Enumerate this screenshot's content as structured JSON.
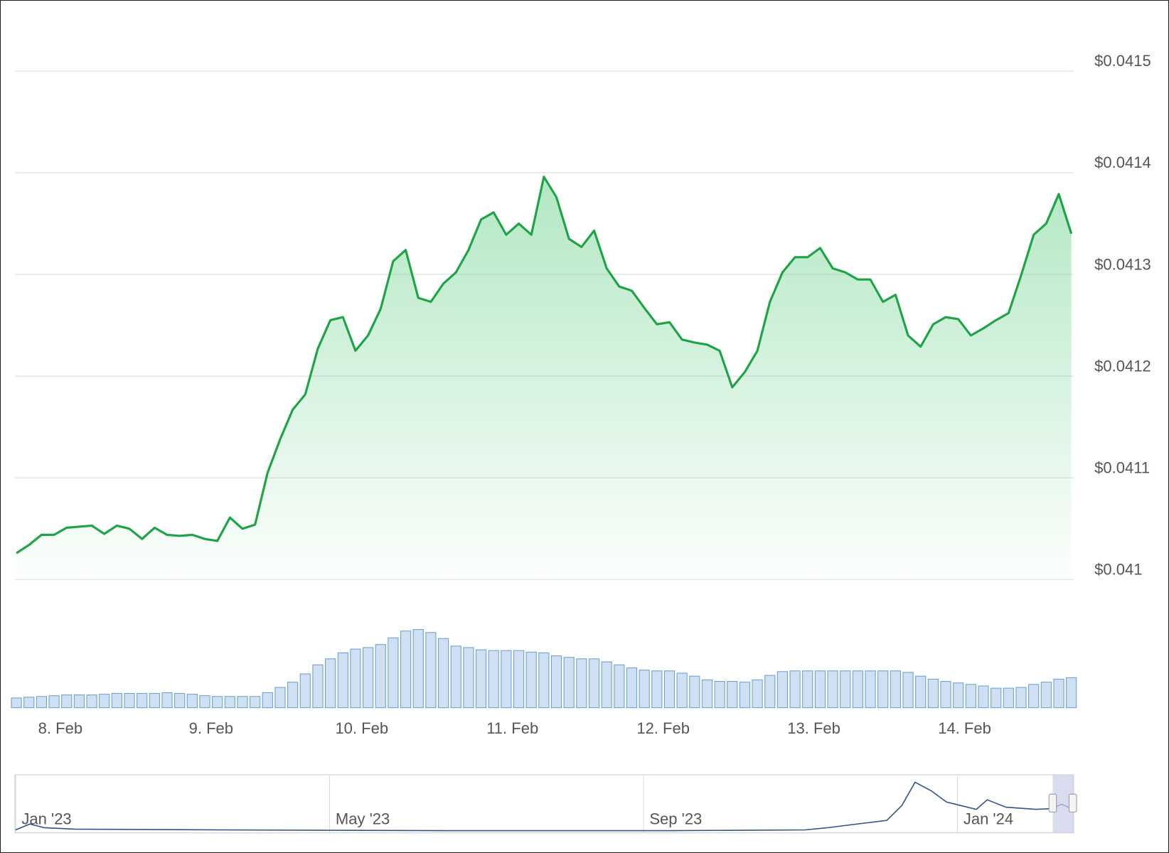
{
  "chart_data": {
    "type": "line",
    "x": [
      -7,
      -5,
      -3,
      -1,
      1,
      3,
      5,
      7,
      9,
      11,
      13,
      15,
      17,
      19,
      21,
      23,
      25,
      27,
      29,
      31,
      33,
      35,
      37,
      39,
      41,
      43,
      45,
      47,
      49,
      51,
      53,
      55,
      57,
      59,
      61,
      63,
      65,
      67,
      69,
      71,
      73,
      75,
      77,
      79,
      81,
      83,
      85,
      87,
      89,
      91,
      93,
      95,
      97,
      99,
      101,
      103,
      105,
      107,
      109,
      111,
      113,
      115,
      117,
      119,
      121,
      123,
      125,
      127,
      129,
      131,
      133,
      135,
      137,
      139,
      141,
      143,
      145,
      147,
      149,
      151,
      153,
      155,
      157,
      159,
      161
    ],
    "series": [
      {
        "color": "#1ea446",
        "values": [
          0.041026,
          0.041034,
          0.041044,
          0.041044,
          0.041051,
          0.041052,
          0.041053,
          0.041045,
          0.041053,
          0.04105,
          0.04104,
          0.041051,
          0.041044,
          0.041043,
          0.041044,
          0.04104,
          0.041038,
          0.041061,
          0.04105,
          0.041054,
          0.041105,
          0.041138,
          0.041167,
          0.041182,
          0.041227,
          0.041255,
          0.041258,
          0.041225,
          0.04124,
          0.041266,
          0.041313,
          0.041324,
          0.041277,
          0.041273,
          0.041291,
          0.041302,
          0.041324,
          0.041354,
          0.041361,
          0.041339,
          0.04135,
          0.041339,
          0.041396,
          0.041376,
          0.041335,
          0.041327,
          0.041343,
          0.041306,
          0.041288,
          0.041284,
          0.041267,
          0.041251,
          0.041253,
          0.041236,
          0.041233,
          0.041231,
          0.041225,
          0.041189,
          0.041204,
          0.041225,
          0.041273,
          0.041302,
          0.041317,
          0.041317,
          0.041326,
          0.041306,
          0.041302,
          0.041295,
          0.041295,
          0.041273,
          0.04128,
          0.04124,
          0.041229,
          0.041251,
          0.041258,
          0.041256,
          0.04124,
          0.041247,
          0.041255,
          0.041262,
          0.041299,
          0.041339,
          0.04135,
          0.041379,
          0.04134
        ]
      }
    ],
    "xlim": [
      -7,
      161
    ],
    "xticks": [
      {
        "value": 0,
        "label": "8. Feb"
      },
      {
        "value": 24,
        "label": "9. Feb"
      },
      {
        "value": 48,
        "label": "10. Feb"
      },
      {
        "value": 72,
        "label": "11. Feb"
      },
      {
        "value": 96,
        "label": "12. Feb"
      },
      {
        "value": 120,
        "label": "13. Feb"
      },
      {
        "value": 144,
        "label": "14. Feb"
      }
    ],
    "ylim": [
      0.041,
      0.04155
    ],
    "yticks": [
      {
        "value": 0.041,
        "label": "$0.041"
      },
      {
        "value": 0.0411,
        "label": "$0.0411"
      },
      {
        "value": 0.0412,
        "label": "$0.0412"
      },
      {
        "value": 0.0413,
        "label": "$0.0413"
      },
      {
        "value": 0.0414,
        "label": "$0.0414"
      },
      {
        "value": 0.0415,
        "label": "$0.0415"
      }
    ],
    "grid": true,
    "volume": {
      "color": "#cfe0f3",
      "values": [
        13,
        14,
        15,
        16,
        17,
        17,
        17,
        18,
        19,
        19,
        19,
        19,
        20,
        19,
        18,
        16,
        15,
        15,
        15,
        15,
        20,
        27,
        34,
        45,
        57,
        65,
        73,
        78,
        80,
        84,
        93,
        102,
        104,
        100,
        92,
        82,
        80,
        77,
        76,
        76,
        76,
        74,
        73,
        69,
        67,
        65,
        65,
        61,
        57,
        53,
        50,
        49,
        49,
        46,
        42,
        37,
        35,
        35,
        34,
        37,
        43,
        48,
        49,
        49,
        49,
        49,
        49,
        49,
        49,
        49,
        49,
        47,
        42,
        38,
        35,
        33,
        31,
        29,
        26,
        26,
        27,
        31,
        34,
        38,
        40
      ]
    },
    "navigator": {
      "color": "#33518a",
      "x": [
        0,
        0.18,
        0.37,
        0.75,
        2.65,
        5.5,
        8.35,
        10.06,
        10.34,
        10.72,
        11.1,
        11.29,
        11.46,
        11.67,
        11.86,
        12.05,
        12.24,
        12.38,
        12.62,
        13.0,
        13.19,
        13.33,
        13.43
      ],
      "values": [
        5,
        13,
        8,
        6,
        5,
        4,
        4,
        5,
        8,
        13,
        18,
        38,
        70,
        58,
        43,
        38,
        33,
        46,
        36,
        33,
        34,
        40,
        35
      ],
      "xlim": [
        0,
        13.48
      ],
      "xticks": [
        {
          "value": 0,
          "label": "Jan '23"
        },
        {
          "value": 4,
          "label": "May '23"
        },
        {
          "value": 8,
          "label": "Sep '23"
        },
        {
          "value": 12,
          "label": "Jan '24"
        }
      ]
    }
  }
}
